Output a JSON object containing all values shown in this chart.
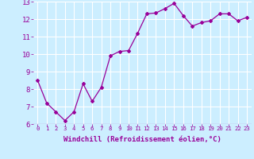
{
  "x": [
    0,
    1,
    2,
    3,
    4,
    5,
    6,
    7,
    8,
    9,
    10,
    11,
    12,
    13,
    14,
    15,
    16,
    17,
    18,
    19,
    20,
    21,
    22,
    23
  ],
  "y": [
    8.5,
    7.2,
    6.7,
    6.2,
    6.7,
    8.3,
    7.3,
    8.1,
    9.9,
    10.15,
    10.2,
    11.2,
    12.3,
    12.35,
    12.6,
    12.9,
    12.2,
    11.6,
    11.8,
    11.9,
    12.3,
    12.3,
    11.9,
    12.1
  ],
  "line_color": "#990099",
  "marker": "D",
  "marker_size": 2,
  "bg_color": "#cceeff",
  "grid_color": "#ffffff",
  "xlabel": "Windchill (Refroidissement éolien,°C)",
  "xlabel_color": "#990099",
  "tick_color": "#990099",
  "ylim": [
    6,
    13
  ],
  "xlim": [
    -0.5,
    23.5
  ],
  "yticks": [
    6,
    7,
    8,
    9,
    10,
    11,
    12,
    13
  ],
  "xticks": [
    0,
    1,
    2,
    3,
    4,
    5,
    6,
    7,
    8,
    9,
    10,
    11,
    12,
    13,
    14,
    15,
    16,
    17,
    18,
    19,
    20,
    21,
    22,
    23
  ],
  "xtick_fontsize": 5.2,
  "ytick_fontsize": 6.5,
  "xlabel_fontsize": 6.5
}
